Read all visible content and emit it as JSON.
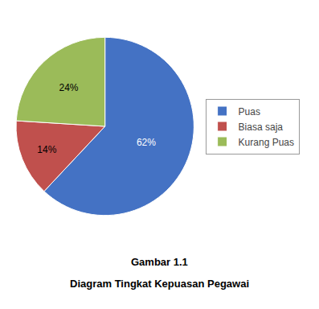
{
  "chart_data": {
    "type": "pie",
    "title": "Gambar 1.1",
    "subtitle": "Diagram Tingkat Kepuasan Pegawai",
    "categories": [
      "Puas",
      "Biasa saja",
      "Kurang Puas"
    ],
    "values": [
      62,
      14,
      24
    ],
    "value_labels": [
      "62%",
      "14%",
      "24%"
    ],
    "data_labels": true,
    "colors": [
      "#4472C4",
      "#C0504D",
      "#9BBB59"
    ],
    "legend": "right"
  }
}
